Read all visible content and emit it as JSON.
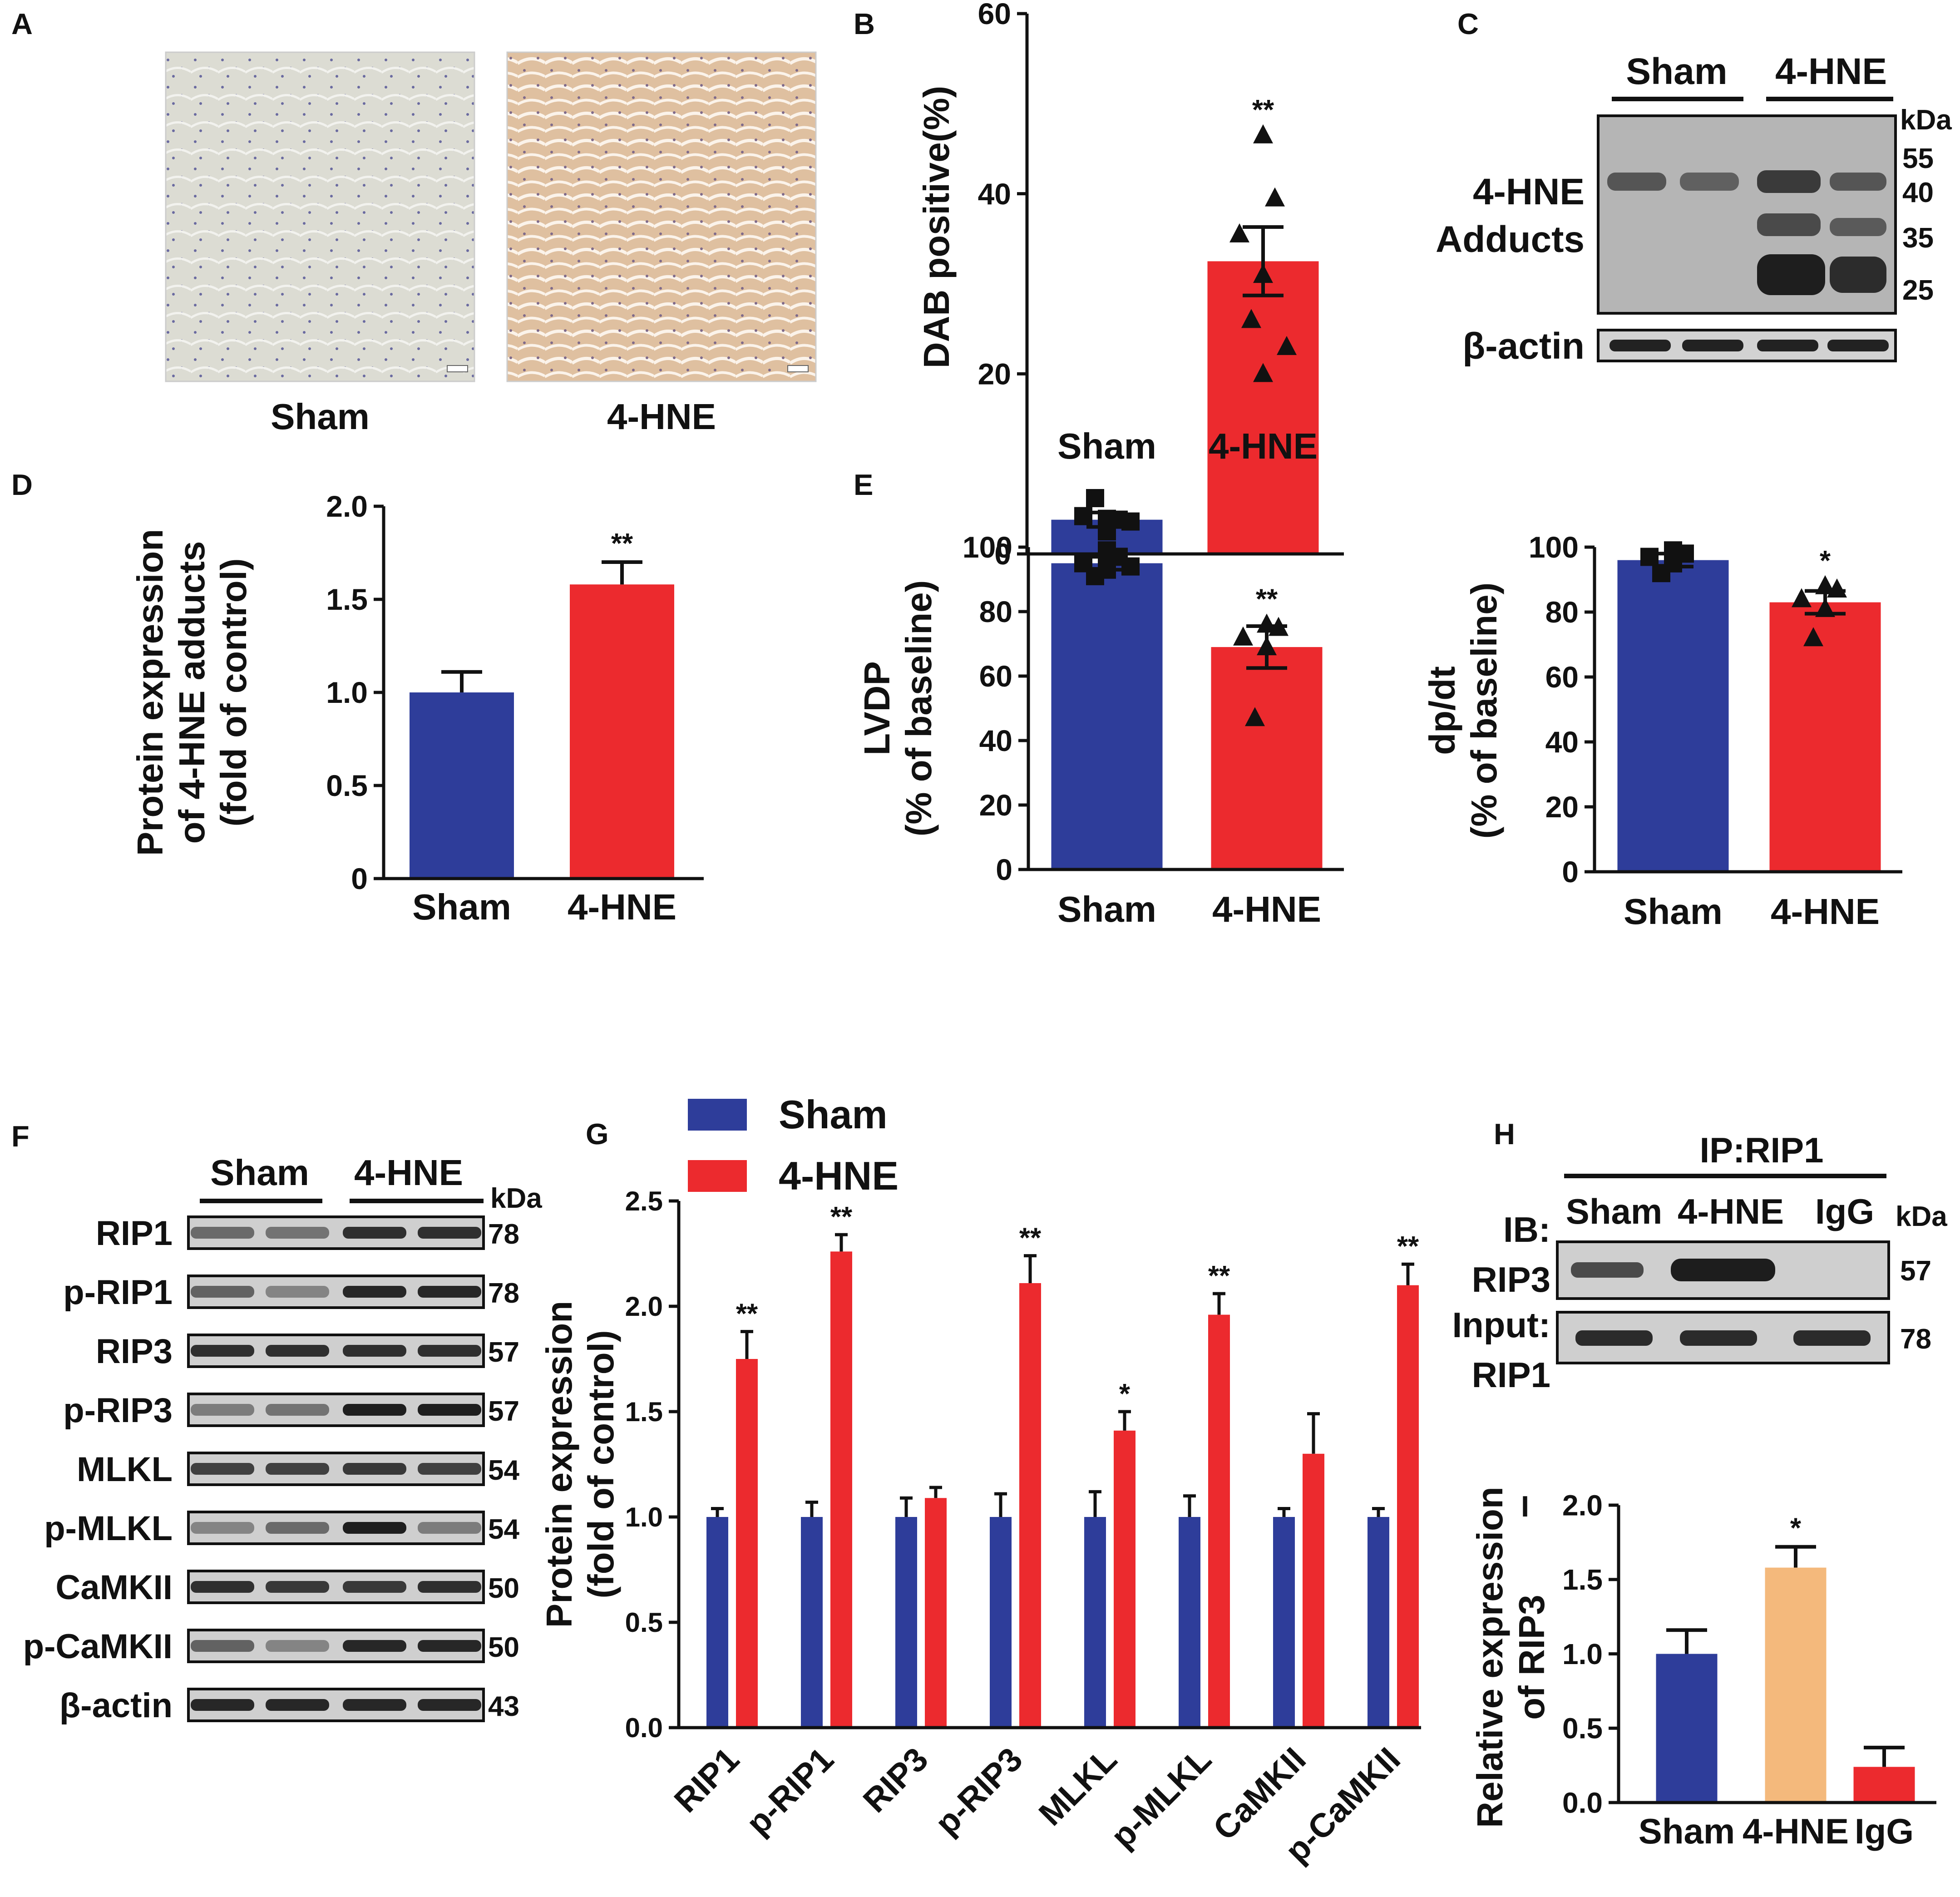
{
  "colors": {
    "sham": "#2e3d9a",
    "hne": "#ec2a2e",
    "hne_light": "#f4b97c",
    "sham_tissue": "#dcdcd3",
    "hne_tissue": "#dfc0a0",
    "band": "#2a2a2a"
  },
  "panel_a": {
    "letter": "A",
    "labels": [
      "Sham",
      "4-HNE"
    ]
  },
  "panel_c": {
    "letter": "C",
    "groups": [
      "Sham",
      "4-HNE"
    ],
    "unit": "kDa",
    "row_label_line1": "4-HNE",
    "row_label_line2": "Adducts",
    "actin_label": "β-actin",
    "mw": [
      "55",
      "40",
      "35",
      "25"
    ]
  },
  "panel_f": {
    "letter": "F",
    "groups": [
      "Sham",
      "4-HNE"
    ],
    "unit": "kDa",
    "rows": [
      {
        "label": "RIP1",
        "kda": "78"
      },
      {
        "label": "p-RIP1",
        "kda": "78"
      },
      {
        "label": "RIP3",
        "kda": "57"
      },
      {
        "label": "p-RIP3",
        "kda": "57"
      },
      {
        "label": "MLKL",
        "kda": "54"
      },
      {
        "label": "p-MLKL",
        "kda": "54"
      },
      {
        "label": "CaMKII",
        "kda": "50"
      },
      {
        "label": "p-CaMKII",
        "kda": "50"
      },
      {
        "label": "β-actin",
        "kda": "43"
      }
    ]
  },
  "panel_h": {
    "letter": "H",
    "ip_label": "IP:RIP1",
    "ib_label": "IB:",
    "ib_target": "RIP3",
    "input_label": "Input:",
    "input_target": "RIP1",
    "groups": [
      "Sham",
      "4-HNE",
      "IgG"
    ],
    "unit": "kDa",
    "kda": [
      "57",
      "78"
    ]
  },
  "chart_data": [
    {
      "panel": "B",
      "type": "bar",
      "categories": [
        "Sham",
        "4-HNE"
      ],
      "values": [
        3.8,
        32.5
      ],
      "errors": [
        0.8,
        3.8
      ],
      "points": [
        [
          3.2,
          3.8,
          4.2,
          2.5,
          6.2,
          3.6,
          3.9
        ],
        [
          46.5,
          39.5,
          35.5,
          31,
          26,
          23,
          20
        ]
      ],
      "markers": [
        "square",
        "triangle"
      ],
      "significance": [
        "",
        "**"
      ],
      "ylabel": "DAB positive(%)",
      "xlabel": "",
      "ylim": [
        0,
        60
      ],
      "yticks": [
        "0",
        "20",
        "40",
        "60"
      ]
    },
    {
      "panel": "D",
      "type": "bar",
      "categories": [
        "Sham",
        "4-HNE"
      ],
      "values": [
        1.0,
        1.58
      ],
      "errors": [
        0.11,
        0.12
      ],
      "significance": [
        "",
        "**"
      ],
      "ylabel": [
        "Protein expression",
        "of 4-HNE adducts",
        "(fold of control)"
      ],
      "xlabel": "",
      "ylim": [
        0,
        2.0
      ],
      "yticks": [
        "0",
        "0.5",
        "1.0",
        "1.5",
        "2.0"
      ]
    },
    {
      "panel": "E",
      "type": "bar",
      "categories": [
        "Sham",
        "4-HNE"
      ],
      "values": [
        95,
        69
      ],
      "errors": [
        2,
        6.5
      ],
      "points": [
        [
          99,
          97,
          95,
          93,
          91,
          94,
          96
        ],
        [
          76,
          75,
          72,
          69,
          47
        ]
      ],
      "markers": [
        "square",
        "triangle"
      ],
      "significance": [
        "",
        "**"
      ],
      "ylabel": [
        "LVDP",
        "(% of baseline)"
      ],
      "xlabel": "",
      "ylim": [
        0,
        100
      ],
      "yticks": [
        "0",
        "20",
        "40",
        "60",
        "80",
        "100"
      ]
    },
    {
      "panel": "E2",
      "type": "bar",
      "categories": [
        "Sham",
        "4-HNE"
      ],
      "values": [
        96,
        83
      ],
      "errors": [
        2,
        3.5
      ],
      "points": [
        [
          99,
          98,
          97,
          95,
          92
        ],
        [
          88,
          87,
          84,
          81,
          72
        ]
      ],
      "markers": [
        "square",
        "triangle"
      ],
      "significance": [
        "",
        "*"
      ],
      "ylabel": [
        "dp/dt",
        "(% of baseline)"
      ],
      "xlabel": "",
      "ylim": [
        0,
        100
      ],
      "yticks": [
        "0",
        "20",
        "40",
        "60",
        "80",
        "100"
      ]
    },
    {
      "panel": "G",
      "type": "bar",
      "categories": [
        "RIP1",
        "p-RIP1",
        "RIP3",
        "p-RIP3",
        "MLKL",
        "p-MLKL",
        "CaMKII",
        "p-CaMKII"
      ],
      "series": [
        {
          "name": "Sham",
          "values": [
            1.0,
            1.0,
            1.0,
            1.0,
            1.0,
            1.0,
            1.0,
            1.0
          ],
          "errors": [
            0.04,
            0.07,
            0.09,
            0.11,
            0.12,
            0.1,
            0.04,
            0.04
          ]
        },
        {
          "name": "4-HNE",
          "values": [
            1.75,
            2.26,
            1.09,
            2.11,
            1.41,
            1.96,
            1.3,
            2.1
          ],
          "errors": [
            0.13,
            0.08,
            0.05,
            0.13,
            0.09,
            0.1,
            0.19,
            0.1
          ]
        }
      ],
      "significance": [
        "**",
        "**",
        "",
        "**",
        "*",
        "**",
        "",
        "**"
      ],
      "ylabel": [
        "Protein expression",
        "(fold of control)"
      ],
      "xlabel": "",
      "ylim": [
        0,
        2.5
      ],
      "yticks": [
        "0.0",
        "0.5",
        "1.0",
        "1.5",
        "2.0",
        "2.5"
      ],
      "legend": "top-left"
    },
    {
      "panel": "I",
      "type": "bar",
      "categories": [
        "Sham",
        "4-HNE",
        "IgG"
      ],
      "values": [
        1.0,
        1.58,
        0.24
      ],
      "errors": [
        0.16,
        0.14,
        0.13
      ],
      "significance": [
        "",
        "*",
        ""
      ],
      "ylabel": [
        "Relative expression",
        "of RIP3"
      ],
      "xlabel": "",
      "ylim": [
        0,
        2.0
      ],
      "yticks": [
        "0.0",
        "0.5",
        "1.0",
        "1.5",
        "2.0"
      ]
    }
  ]
}
